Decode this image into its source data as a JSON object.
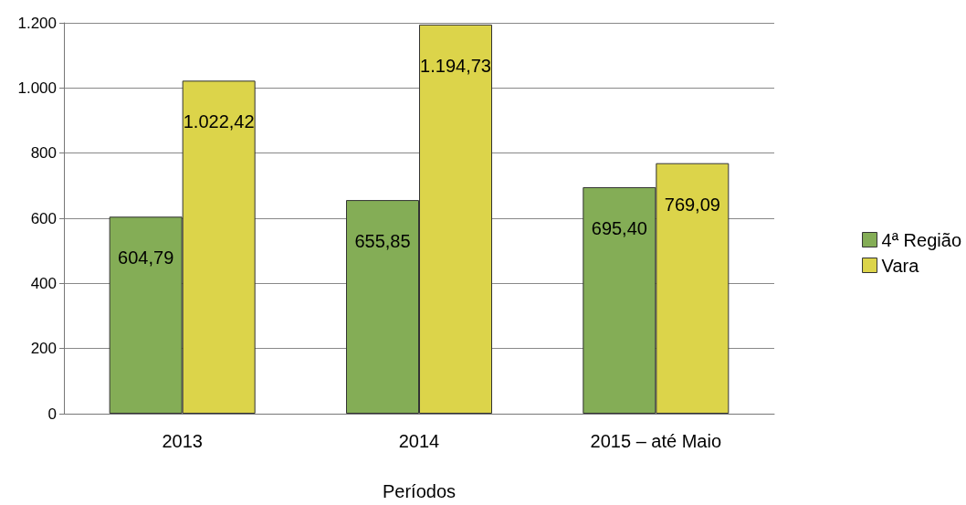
{
  "chart_data": {
    "type": "bar",
    "xlabel": "Períodos",
    "categories": [
      "2013",
      "2014",
      "2015 – até Maio"
    ],
    "series": [
      {
        "name": "4ª Região",
        "color": "#84ad56",
        "values": [
          604.79,
          655.85,
          695.4
        ],
        "value_labels": [
          "604,79",
          "655,85",
          "695,40"
        ]
      },
      {
        "name": "Vara",
        "color": "#dcd44a",
        "values": [
          1022.42,
          1194.73,
          769.09
        ],
        "value_labels": [
          "1.022,42",
          "1.194,73",
          "769,09"
        ]
      }
    ],
    "ylim": [
      0,
      1200
    ],
    "yticks": [
      0,
      200,
      400,
      600,
      800,
      {
        "value": 1000,
        "label": "1.000"
      },
      {
        "value": 1200,
        "label": "1.200"
      }
    ],
    "grid": "y",
    "legend": "right"
  }
}
